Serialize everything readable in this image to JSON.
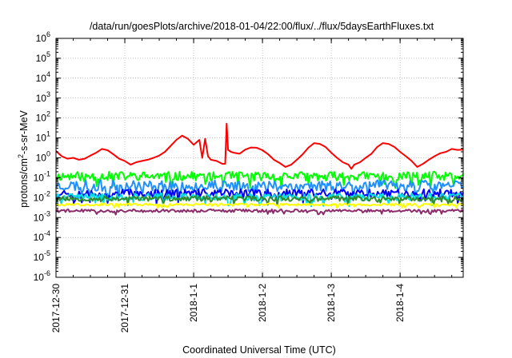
{
  "chart_data": {
    "type": "line",
    "title": "/data/run/goesPlots/archive/2018-01-04/22:00/flux/../flux/5daysEarthFluxes.txt",
    "xlabel": "Coordinated Universal Time (UTC)",
    "ylabel_parts": {
      "base": "protons/cm",
      "sup": "2",
      "rest": "-s-sr-MeV"
    },
    "yscale": "log",
    "ylim": [
      1e-06,
      1000000.0
    ],
    "y_ticks": [
      {
        "base": "10",
        "exp": "-6",
        "v": -6
      },
      {
        "base": "10",
        "exp": "-5",
        "v": -5
      },
      {
        "base": "10",
        "exp": "-4",
        "v": -4
      },
      {
        "base": "10",
        "exp": "-3",
        "v": -3
      },
      {
        "base": "10",
        "exp": "-2",
        "v": -2
      },
      {
        "base": "10",
        "exp": "-1",
        "v": -1
      },
      {
        "base": "10",
        "exp": "0",
        "v": 0
      },
      {
        "base": "10",
        "exp": "1",
        "v": 1
      },
      {
        "base": "10",
        "exp": "2",
        "v": 2
      },
      {
        "base": "10",
        "exp": "3",
        "v": 3
      },
      {
        "base": "10",
        "exp": "4",
        "v": 4
      },
      {
        "base": "10",
        "exp": "5",
        "v": 5
      },
      {
        "base": "10",
        "exp": "6",
        "v": 6
      }
    ],
    "xlim": [
      "2017-12-30T00:00",
      "2018-01-04T22:00"
    ],
    "x_ticks": [
      {
        "label": "2017-12-30",
        "t": "2017-12-30T00:00"
      },
      {
        "label": "2017-12-31",
        "t": "2017-12-31T00:00"
      },
      {
        "label": "2018-1-1",
        "t": "2018-01-01T00:00"
      },
      {
        "label": "2018-1-2",
        "t": "2018-01-02T00:00"
      },
      {
        "label": "2018-1-3",
        "t": "2018-01-03T00:00"
      },
      {
        "label": "2018-1-4",
        "t": "2018-01-04T00:00"
      }
    ],
    "grid": true,
    "series": [
      {
        "color": "#ff0000",
        "width": 2,
        "x": [
          "2017-12-30T00:00",
          "2017-12-30T02:00",
          "2017-12-30T04:00",
          "2017-12-30T06:00",
          "2017-12-30T08:00",
          "2017-12-30T10:00",
          "2017-12-30T12:00",
          "2017-12-30T14:00",
          "2017-12-30T16:00",
          "2017-12-30T18:00",
          "2017-12-30T20:00",
          "2017-12-30T22:00",
          "2017-12-31T00:00",
          "2017-12-31T02:00",
          "2017-12-31T04:00",
          "2017-12-31T06:00",
          "2017-12-31T08:00",
          "2017-12-31T10:00",
          "2017-12-31T12:00",
          "2017-12-31T14:00",
          "2017-12-31T16:00",
          "2017-12-31T18:00",
          "2017-12-31T20:00",
          "2017-12-31T22:00",
          "2018-01-01T00:00",
          "2018-01-01T01:00",
          "2018-01-01T02:00",
          "2018-01-01T03:00",
          "2018-01-01T04:00",
          "2018-01-01T05:00",
          "2018-01-01T06:00",
          "2018-01-01T08:00",
          "2018-01-01T10:00",
          "2018-01-01T11:00",
          "2018-01-01T11:30",
          "2018-01-01T12:00",
          "2018-01-01T13:00",
          "2018-01-01T14:00",
          "2018-01-01T16:00",
          "2018-01-01T18:00",
          "2018-01-01T20:00",
          "2018-01-01T22:00",
          "2018-01-02T00:00",
          "2018-01-02T02:00",
          "2018-01-02T04:00",
          "2018-01-02T06:00",
          "2018-01-02T08:00",
          "2018-01-02T10:00",
          "2018-01-02T12:00",
          "2018-01-02T14:00",
          "2018-01-02T16:00",
          "2018-01-02T18:00",
          "2018-01-02T20:00",
          "2018-01-02T22:00",
          "2018-01-03T00:00",
          "2018-01-03T02:00",
          "2018-01-03T04:00",
          "2018-01-03T06:00",
          "2018-01-03T07:00",
          "2018-01-03T08:00",
          "2018-01-03T10:00",
          "2018-01-03T12:00",
          "2018-01-03T14:00",
          "2018-01-03T16:00",
          "2018-01-03T18:00",
          "2018-01-03T20:00",
          "2018-01-03T22:00",
          "2018-01-04T00:00",
          "2018-01-04T02:00",
          "2018-01-04T04:00",
          "2018-01-04T06:00",
          "2018-01-04T08:00",
          "2018-01-04T10:00",
          "2018-01-04T12:00",
          "2018-01-04T14:00",
          "2018-01-04T16:00",
          "2018-01-04T18:00",
          "2018-01-04T20:00",
          "2018-01-04T22:00"
        ],
        "y": [
          2.2,
          1.2,
          0.9,
          1.0,
          0.8,
          0.9,
          1.3,
          1.8,
          2.8,
          2.4,
          1.5,
          0.9,
          0.7,
          0.45,
          0.6,
          0.7,
          0.8,
          1.0,
          1.3,
          2.0,
          4.0,
          8.0,
          13,
          9,
          4.5,
          6.0,
          8.0,
          1.0,
          9.0,
          1.2,
          0.8,
          0.7,
          0.5,
          0.5,
          52,
          2.5,
          2.0,
          1.8,
          1.6,
          2.6,
          3.3,
          3.2,
          2.4,
          1.5,
          0.8,
          0.55,
          0.35,
          0.45,
          0.8,
          1.5,
          3.2,
          5.5,
          5.0,
          3.5,
          1.8,
          1.0,
          0.6,
          0.45,
          0.28,
          0.45,
          0.6,
          1.0,
          1.6,
          3.5,
          5.5,
          5.0,
          3.5,
          2.0,
          1.2,
          0.7,
          0.35,
          0.5,
          0.8,
          1.2,
          1.7,
          2.0,
          2.8,
          2.5,
          2.6
        ]
      },
      {
        "color": "#00ff00",
        "width": 2,
        "base": 0.12,
        "amp": 0.45,
        "seed": 11
      },
      {
        "color": "#1e90ff",
        "width": 2,
        "base": 0.04,
        "amp": 0.55,
        "seed": 23
      },
      {
        "color": "#0000ff",
        "width": 2,
        "base": 0.017,
        "amp": 0.4,
        "seed": 37
      },
      {
        "color": "#00e0e0",
        "width": 2,
        "base": 0.011,
        "amp": 0.35,
        "seed": 41
      },
      {
        "color": "#2e8b2e",
        "width": 2,
        "base": 0.009,
        "amp": 0.25,
        "seed": 53
      },
      {
        "color": "#ffff00",
        "width": 2,
        "base": 0.0045,
        "amp": 0.12,
        "seed": 67
      },
      {
        "color": "#8b2c6b",
        "width": 2,
        "base": 0.0022,
        "amp": 0.15,
        "seed": 79
      }
    ]
  }
}
